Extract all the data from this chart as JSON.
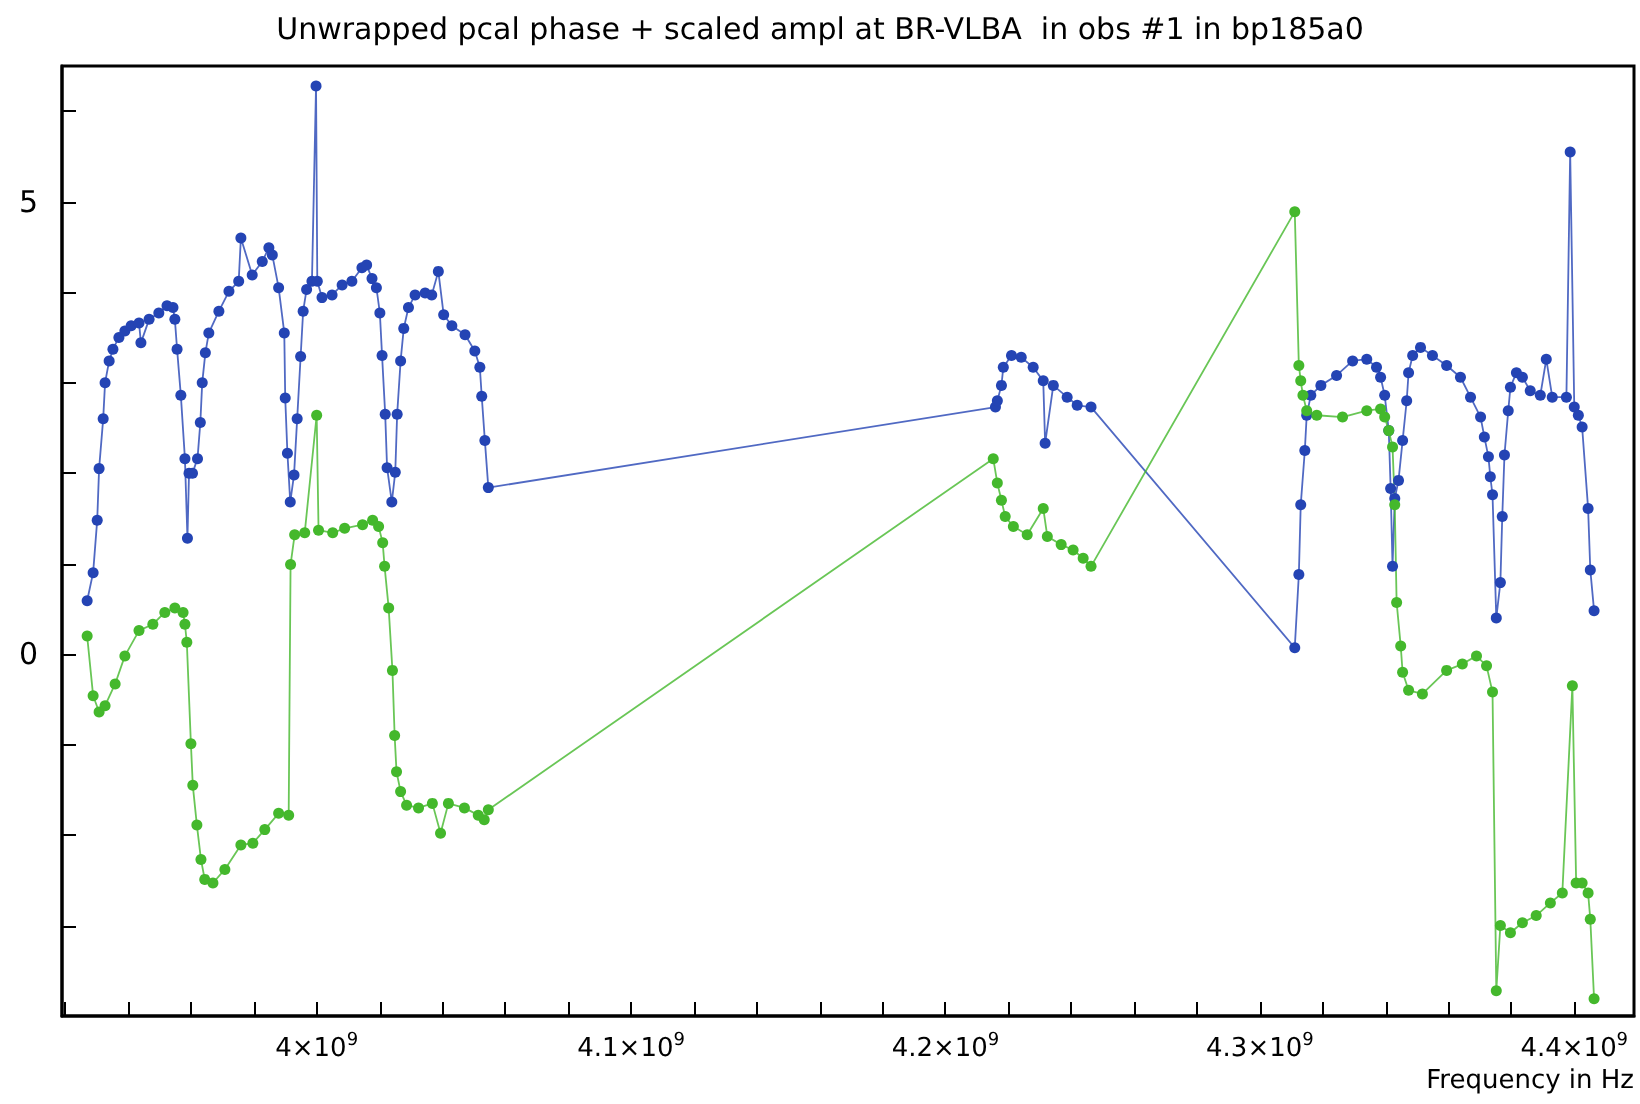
{
  "chart_data": {
    "type": "line",
    "title": "Unwrapped pcal phase + scaled ampl at BR-VLBA  in obs #1 in bp185a0",
    "xlabel": "Frequency in Hz",
    "xlim": [
      3919000000.0,
      4419000000.0
    ],
    "ylim": [
      -4,
      6.5
    ],
    "xticks": [
      {
        "value": 3920000000.0,
        "label": null
      },
      {
        "value": 3940000000.0,
        "label": null
      },
      {
        "value": 3960000000.0,
        "label": null
      },
      {
        "value": 3980000000.0,
        "label": null
      },
      {
        "value": 4000000000.0,
        "label": "4×10$^{9}$"
      },
      {
        "value": 4020000000.0,
        "label": null
      },
      {
        "value": 4040000000.0,
        "label": null
      },
      {
        "value": 4060000000.0,
        "label": null
      },
      {
        "value": 4080000000.0,
        "label": null
      },
      {
        "value": 4100000000.0,
        "label": "4.1×10$^{9}$"
      },
      {
        "value": 4120000000.0,
        "label": null
      },
      {
        "value": 4140000000.0,
        "label": null
      },
      {
        "value": 4160000000.0,
        "label": null
      },
      {
        "value": 4180000000.0,
        "label": null
      },
      {
        "value": 4200000000.0,
        "label": "4.2×10$^{9}$"
      },
      {
        "value": 4220000000.0,
        "label": null
      },
      {
        "value": 4240000000.0,
        "label": null
      },
      {
        "value": 4260000000.0,
        "label": null
      },
      {
        "value": 4280000000.0,
        "label": null
      },
      {
        "value": 4300000000.0,
        "label": "4.3×10$^{9}$"
      },
      {
        "value": 4320000000.0,
        "label": null
      },
      {
        "value": 4340000000.0,
        "label": null
      },
      {
        "value": 4360000000.0,
        "label": null
      },
      {
        "value": 4380000000.0,
        "label": null
      },
      {
        "value": 4400000000.0,
        "label": "4.4×10$^{9}$"
      }
    ],
    "yticks": [
      {
        "value": -3,
        "label": null
      },
      {
        "value": -2,
        "label": null
      },
      {
        "value": -1,
        "label": null
      },
      0,
      {
        "value": 1,
        "label": null
      },
      {
        "value": 2,
        "label": null
      },
      {
        "value": 3,
        "label": null
      },
      {
        "value": 4,
        "label": null
      },
      5,
      {
        "value": 6,
        "label": null
      }
    ],
    "grid": false,
    "marker": "circle",
    "line_style": "solid",
    "series": [
      {
        "color": "#2444b4",
        "x": [
          3927000000.0,
          3928900000.0,
          3930200000.0,
          3930800000.0,
          3932100000.0,
          3932700000.0,
          3934000000.0,
          3935200000.0,
          3937100000.0,
          3939000000.0,
          3941000000.0,
          3943500000.0,
          3944100000.0,
          3946700000.0,
          3949800000.0,
          3952400000.0,
          3954300000.0,
          3954900000.0,
          3955600000.0,
          3956800000.0,
          3958100000.0,
          3958900000.0,
          3959400000.0,
          3960500000.0,
          3962100000.0,
          3963000000.0,
          3963600000.0,
          3964600000.0,
          3965700000.0,
          3968900000.0,
          3972100000.0,
          3975200000.0,
          3975900000.0,
          3979500000.0,
          3982700000.0,
          3984800000.0,
          3985900000.0,
          3987900000.0,
          3989700000.0,
          3990000000.0,
          3990700000.0,
          3991600000.0,
          3992800000.0,
          3993800000.0,
          3994900000.0,
          3995700000.0,
          3996800000.0,
          3998500000.0,
          3999800000.0,
          4000200000.0,
          4001700000.0,
          4004900000.0,
          4008100000.0,
          4011200000.0,
          4014400000.0,
          4015900000.0,
          4017600000.0,
          4019000000.0,
          4020100000.0,
          4020800000.0,
          4021800000.0,
          4022400000.0,
          4023900000.0,
          4025000000.0,
          4025600000.0,
          4026700000.0,
          4027700000.0,
          4029200000.0,
          4031300000.0,
          4034500000.0,
          4036600000.0,
          4038700000.0,
          4040400000.0,
          4043000000.0,
          4047200000.0,
          4050300000.0,
          4051900000.0,
          4052500000.0,
          4053500000.0,
          4054600000.0,
          4215900000.0,
          4216500000.0,
          4217800000.0,
          4218400000.0,
          4221000000.0,
          4224100000.0,
          4227900000.0,
          4231100000.0,
          4231700000.0,
          4234300000.0,
          4238700000.0,
          4241900000.0,
          4246300000.0,
          4311100000.0,
          4312400000.0,
          4313000000.0,
          4314300000.0,
          4314900000.0,
          4316200000.0,
          4319400000.0,
          4324400000.0,
          4329500000.0,
          4334000000.0,
          4337100000.0,
          4338400000.0,
          4339700000.0,
          4341000000.0,
          4341600000.0,
          4342200000.0,
          4342900000.0,
          4344100000.0,
          4345400000.0,
          4346700000.0,
          4347300000.0,
          4348600000.0,
          4351100000.0,
          4354900000.0,
          4359400000.0,
          4363800000.0,
          4367000000.0,
          4370200000.0,
          4371400000.0,
          4372700000.0,
          4373300000.0,
          4374000000.0,
          4375200000.0,
          4376500000.0,
          4377100000.0,
          4377800000.0,
          4379000000.0,
          4379700000.0,
          4381600000.0,
          4383500000.0,
          4386000000.0,
          4389200000.0,
          4391100000.0,
          4393000000.0,
          4397500000.0,
          4398700000.0,
          4400000000.0,
          4401300000.0,
          4402500000.0,
          4404400000.0,
          4405100000.0,
          4406300000.0
        ],
        "values": [
          0.59,
          0.9,
          1.48,
          2.05,
          2.6,
          3.0,
          3.24,
          3.37,
          3.5,
          3.57,
          3.63,
          3.66,
          3.44,
          3.7,
          3.77,
          3.85,
          3.83,
          3.7,
          3.37,
          2.86,
          2.16,
          1.28,
          2.0,
          2.0,
          2.16,
          2.56,
          3.0,
          3.33,
          3.55,
          3.79,
          4.01,
          4.12,
          4.6,
          4.19,
          4.34,
          4.49,
          4.41,
          4.05,
          3.55,
          2.83,
          2.22,
          1.68,
          1.98,
          2.6,
          3.29,
          3.79,
          4.03,
          4.12,
          6.28,
          4.12,
          3.94,
          3.97,
          4.08,
          4.12,
          4.27,
          4.3,
          4.15,
          4.05,
          3.77,
          3.3,
          2.65,
          2.06,
          1.68,
          2.01,
          2.65,
          3.24,
          3.6,
          3.83,
          3.97,
          3.99,
          3.97,
          4.23,
          3.75,
          3.63,
          3.53,
          3.35,
          3.17,
          2.85,
          2.36,
          1.84,
          2.73,
          2.8,
          2.97,
          3.17,
          3.3,
          3.28,
          3.17,
          3.02,
          2.33,
          2.97,
          2.84,
          2.75,
          2.73,
          0.07,
          0.88,
          1.65,
          2.25,
          2.64,
          2.86,
          2.97,
          3.08,
          3.24,
          3.26,
          3.17,
          3.06,
          2.86,
          2.47,
          1.83,
          0.97,
          1.72,
          1.92,
          2.36,
          2.8,
          3.11,
          3.3,
          3.39,
          3.3,
          3.19,
          3.06,
          2.84,
          2.62,
          2.4,
          2.18,
          1.96,
          1.76,
          0.4,
          0.79,
          1.52,
          2.2,
          2.69,
          2.95,
          3.11,
          3.06,
          2.91,
          2.86,
          3.26,
          2.84,
          2.84,
          5.55,
          2.73,
          2.64,
          2.51,
          1.61,
          0.93,
          0.48
        ]
      },
      {
        "color": "#44b82c",
        "x": [
          3927000000.0,
          3928900000.0,
          3930800000.0,
          3932700000.0,
          3935900000.0,
          3939000000.0,
          3943500000.0,
          3947900000.0,
          3951700000.0,
          3954900000.0,
          3957500000.0,
          3958100000.0,
          3958700000.0,
          3960000000.0,
          3960600000.0,
          3961900000.0,
          3963200000.0,
          3964400000.0,
          3967000000.0,
          3970800000.0,
          3975900000.0,
          3979700000.0,
          3983500000.0,
          3987900000.0,
          3991100000.0,
          3991700000.0,
          3993000000.0,
          3996200000.0,
          4000000000.0,
          4000600000.0,
          4005100000.0,
          4008900000.0,
          4014600000.0,
          4017800000.0,
          4019700000.0,
          4021000000.0,
          4021600000.0,
          4022900000.0,
          4024100000.0,
          4024800000.0,
          4025400000.0,
          4026700000.0,
          4028600000.0,
          4032400000.0,
          4036800000.0,
          4039400000.0,
          4041900000.0,
          4047000000.0,
          4051400000.0,
          4053300000.0,
          4054600000.0,
          4215200000.0,
          4216500000.0,
          4217800000.0,
          4219000000.0,
          4221600000.0,
          4226000000.0,
          4231100000.0,
          4232400000.0,
          4236800000.0,
          4240600000.0,
          4243800000.0,
          4246300000.0,
          4311100000.0,
          4312400000.0,
          4313000000.0,
          4313700000.0,
          4314900000.0,
          4318100000.0,
          4326300000.0,
          4334000000.0,
          4338400000.0,
          4339700000.0,
          4341000000.0,
          4342200000.0,
          4342900000.0,
          4343500000.0,
          4344800000.0,
          4345400000.0,
          4347300000.0,
          4351700000.0,
          4359400000.0,
          4364400000.0,
          4368900000.0,
          4372100000.0,
          4374000000.0,
          4375200000.0,
          4376500000.0,
          4379700000.0,
          4383500000.0,
          4387900000.0,
          4392400000.0,
          4396200000.0,
          4399400000.0,
          4400600000.0,
          4402500000.0,
          4404400000.0,
          4405100000.0,
          4406300000.0
        ],
        "values": [
          0.2,
          -0.46,
          -0.64,
          -0.57,
          -0.33,
          -0.02,
          0.26,
          0.33,
          0.46,
          0.51,
          0.46,
          0.33,
          0.13,
          -0.99,
          -1.45,
          -1.89,
          -2.27,
          -2.49,
          -2.53,
          -2.38,
          -2.11,
          -2.09,
          -1.94,
          -1.76,
          -1.78,
          0.99,
          1.32,
          1.34,
          2.64,
          1.37,
          1.34,
          1.39,
          1.43,
          1.48,
          1.41,
          1.23,
          0.97,
          0.51,
          -0.18,
          -0.9,
          -1.3,
          -1.52,
          -1.67,
          -1.7,
          -1.65,
          -1.98,
          -1.65,
          -1.7,
          -1.78,
          -1.83,
          -1.72,
          2.16,
          1.89,
          1.7,
          1.52,
          1.41,
          1.32,
          1.61,
          1.3,
          1.21,
          1.15,
          1.06,
          0.97,
          4.89,
          3.19,
          3.02,
          2.86,
          2.69,
          2.64,
          2.62,
          2.69,
          2.71,
          2.62,
          2.47,
          2.29,
          1.65,
          0.57,
          0.09,
          -0.2,
          -0.4,
          -0.44,
          -0.18,
          -0.11,
          -0.02,
          -0.13,
          -0.42,
          -3.72,
          -3.0,
          -3.08,
          -2.97,
          -2.89,
          -2.75,
          -2.64,
          -0.35,
          -2.53,
          -2.53,
          -2.64,
          -2.93,
          -3.81
        ]
      }
    ]
  }
}
